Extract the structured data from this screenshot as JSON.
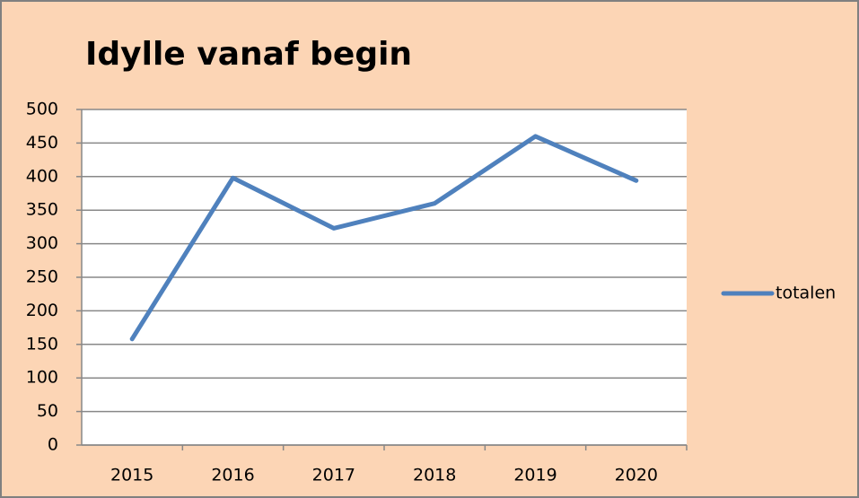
{
  "chart_data": {
    "type": "line",
    "title": "Idylle vanaf begin",
    "categories": [
      "2015",
      "2016",
      "2017",
      "2018",
      "2019",
      "2020"
    ],
    "series": [
      {
        "name": "totalen",
        "color": "#4f81bd",
        "values": [
          158,
          398,
          323,
          360,
          460,
          394
        ]
      }
    ],
    "ylim": [
      0,
      500
    ],
    "yticks": [
      0,
      50,
      100,
      150,
      200,
      250,
      300,
      350,
      400,
      450,
      500
    ],
    "grid": true,
    "legend": "right"
  }
}
